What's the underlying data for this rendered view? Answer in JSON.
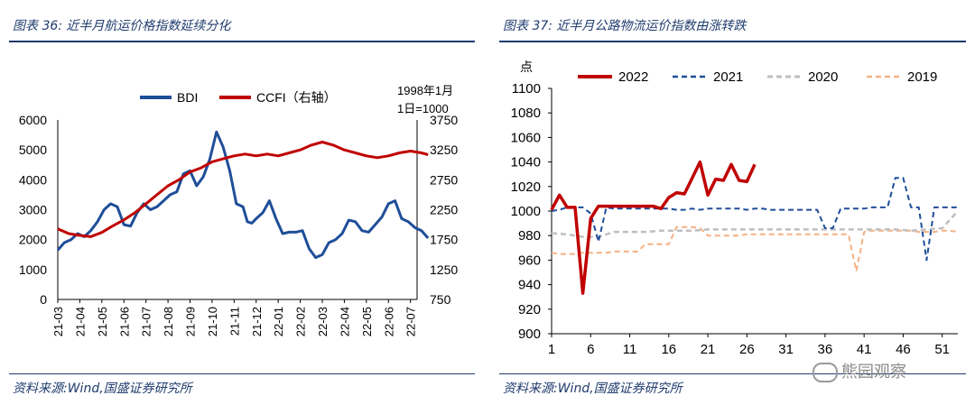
{
  "left": {
    "title": "图表 36:  近半月航运价格指数延续分化",
    "source": "资料来源:Wind,国盛证券研究所"
  },
  "right": {
    "title": "图表 37:  近半月公路物流运价指数由涨转跌",
    "source": "资料来源:Wind,国盛证券研究所"
  },
  "watermark": "熊园观察",
  "colors": {
    "title": "#1f3b6e",
    "bdi": "#1f4e99",
    "ccfi": "#c00000",
    "y2021": "#1f4e99",
    "y2020": "#bfbfbf",
    "y2019": "#f4b183"
  },
  "chart_data": [
    {
      "type": "line",
      "title": "",
      "legend_position": "top",
      "unit_note": "1998年1月1日=1000",
      "x_tick_labels": [
        "21-03",
        "21-04",
        "21-05",
        "21-06",
        "21-07",
        "21-08",
        "21-09",
        "21-10",
        "21-11",
        "21-12",
        "22-01",
        "22-02",
        "22-03",
        "22-04",
        "22-05",
        "22-06",
        "22-07"
      ],
      "y_left": {
        "min": 0,
        "max": 6000,
        "ticks": [
          0,
          1000,
          2000,
          3000,
          4000,
          5000,
          6000
        ]
      },
      "y_right": {
        "min": 750,
        "max": 3750,
        "ticks": [
          750,
          1250,
          1750,
          2250,
          2750,
          3250,
          3750
        ]
      },
      "series": [
        {
          "name": "BDI",
          "axis": "left",
          "x": [
            0,
            0.3,
            0.6,
            0.9,
            1.2,
            1.5,
            1.8,
            2.1,
            2.4,
            2.7,
            3.0,
            3.3,
            3.6,
            3.9,
            4.2,
            4.5,
            4.8,
            5.1,
            5.4,
            5.7,
            6.0,
            6.3,
            6.6,
            6.9,
            7.2,
            7.5,
            7.8,
            8.1,
            8.4,
            8.6,
            8.8,
            9.0,
            9.3,
            9.6,
            9.9,
            10.2,
            10.5,
            10.8,
            11.1,
            11.4,
            11.7,
            12.0,
            12.3,
            12.6,
            12.9,
            13.2,
            13.5,
            13.8,
            14.1,
            14.4,
            14.7,
            15.0,
            15.3,
            15.6,
            15.9,
            16.2,
            16.5,
            16.8
          ],
          "values": [
            1650,
            1900,
            2000,
            2200,
            2100,
            2300,
            2600,
            3000,
            3200,
            3100,
            2500,
            2450,
            2900,
            3200,
            3000,
            3100,
            3300,
            3500,
            3600,
            4200,
            4300,
            3800,
            4100,
            4700,
            5600,
            5100,
            4300,
            3200,
            3100,
            2600,
            2550,
            2700,
            2900,
            3300,
            2700,
            2200,
            2250,
            2250,
            2300,
            1700,
            1400,
            1500,
            1900,
            2000,
            2200,
            2650,
            2600,
            2300,
            2250,
            2500,
            2750,
            3200,
            3300,
            2700,
            2600,
            2400,
            2300,
            2050
          ]
        },
        {
          "name": "CCFI（右轴）",
          "axis": "right",
          "x": [
            0,
            0.5,
            1.0,
            1.5,
            2.0,
            2.5,
            3.0,
            3.5,
            4.0,
            4.5,
            5.0,
            5.5,
            6.0,
            6.5,
            7.0,
            7.5,
            8.0,
            8.5,
            9.0,
            9.5,
            10.0,
            10.5,
            11.0,
            11.5,
            12.0,
            12.5,
            13.0,
            13.5,
            14.0,
            14.5,
            15.0,
            15.5,
            16.0,
            16.5,
            16.8
          ],
          "values": [
            1930,
            1850,
            1820,
            1800,
            1870,
            1980,
            2080,
            2200,
            2350,
            2500,
            2650,
            2750,
            2880,
            2950,
            3050,
            3100,
            3150,
            3180,
            3150,
            3180,
            3150,
            3200,
            3250,
            3330,
            3380,
            3330,
            3250,
            3200,
            3150,
            3120,
            3150,
            3200,
            3230,
            3200,
            3170
          ]
        }
      ]
    },
    {
      "type": "line",
      "title": "",
      "ylabel": "点",
      "legend_position": "top",
      "x_tick_labels": [
        "1",
        "6",
        "11",
        "16",
        "21",
        "26",
        "31",
        "36",
        "41",
        "46",
        "51"
      ],
      "xlim": [
        1,
        53
      ],
      "ylim": [
        900,
        1100
      ],
      "y_ticks": [
        900,
        920,
        940,
        960,
        980,
        1000,
        1020,
        1040,
        1060,
        1080,
        1100
      ],
      "series": [
        {
          "name": "2022",
          "x": [
            1,
            2,
            3,
            4,
            5,
            6,
            7,
            8,
            9,
            10,
            11,
            12,
            13,
            14,
            15,
            16,
            17,
            18,
            19,
            20,
            21,
            22,
            23,
            24,
            25,
            26,
            27
          ],
          "values": [
            1001,
            1013,
            1003,
            1003,
            933,
            994,
            1004,
            1004,
            1004,
            1004,
            1004,
            1004,
            1004,
            1004,
            1002,
            1011,
            1015,
            1014,
            1027,
            1040,
            1013,
            1026,
            1025,
            1038,
            1025,
            1024,
            1038
          ]
        },
        {
          "name": "2021",
          "x": [
            1,
            2,
            3,
            4,
            5,
            6,
            7,
            8,
            9,
            10,
            11,
            12,
            13,
            14,
            15,
            16,
            17,
            18,
            19,
            20,
            21,
            22,
            23,
            24,
            25,
            26,
            27,
            28,
            29,
            30,
            31,
            32,
            33,
            34,
            35,
            36,
            37,
            38,
            39,
            40,
            41,
            42,
            43,
            44,
            45,
            46,
            47,
            48,
            49,
            50,
            51,
            52,
            53
          ],
          "values": [
            1000,
            1001,
            1003,
            1003,
            1003,
            998,
            975,
            1003,
            1002,
            1002,
            1002,
            1002,
            1002,
            1002,
            1002,
            1002,
            1001,
            1001,
            1002,
            1001,
            1002,
            1002,
            1002,
            1002,
            1002,
            1001,
            1002,
            1002,
            1001,
            1001,
            1001,
            1001,
            1001,
            1001,
            1001,
            986,
            986,
            1002,
            1002,
            1002,
            1002,
            1003,
            1003,
            1003,
            1027,
            1027,
            1003,
            1003,
            960,
            1003,
            1003,
            1003,
            1003
          ]
        },
        {
          "name": "2020",
          "x": [
            1,
            3,
            5,
            7,
            9,
            11,
            13,
            15,
            17,
            19,
            21,
            23,
            25,
            27,
            29,
            31,
            33,
            35,
            37,
            39,
            41,
            43,
            45,
            47,
            49,
            51,
            53
          ],
          "values": [
            982,
            981,
            979,
            979,
            983,
            983,
            983,
            984,
            984,
            984,
            985,
            985,
            985,
            985,
            985,
            985,
            985,
            985,
            985,
            985,
            985,
            985,
            985,
            984,
            985,
            986,
            1000
          ]
        },
        {
          "name": "2019",
          "x": [
            1,
            2,
            3,
            4,
            5,
            6,
            7,
            8,
            9,
            10,
            11,
            12,
            13,
            14,
            15,
            16,
            17,
            18,
            19,
            20,
            21,
            22,
            23,
            24,
            25,
            26,
            27,
            28,
            29,
            30,
            31,
            32,
            33,
            34,
            35,
            36,
            37,
            38,
            39,
            40,
            41,
            42,
            43,
            44,
            45,
            46,
            47,
            48,
            49,
            50,
            51,
            52,
            53
          ],
          "values": [
            966,
            965,
            965,
            965,
            966,
            966,
            966,
            966,
            967,
            967,
            967,
            967,
            973,
            973,
            973,
            973,
            987,
            987,
            987,
            986,
            980,
            980,
            980,
            980,
            980,
            981,
            981,
            981,
            981,
            981,
            981,
            981,
            981,
            981,
            981,
            981,
            981,
            981,
            981,
            951,
            983,
            984,
            984,
            984,
            984,
            984,
            984,
            983,
            983,
            983,
            984,
            984,
            983
          ]
        }
      ]
    }
  ]
}
